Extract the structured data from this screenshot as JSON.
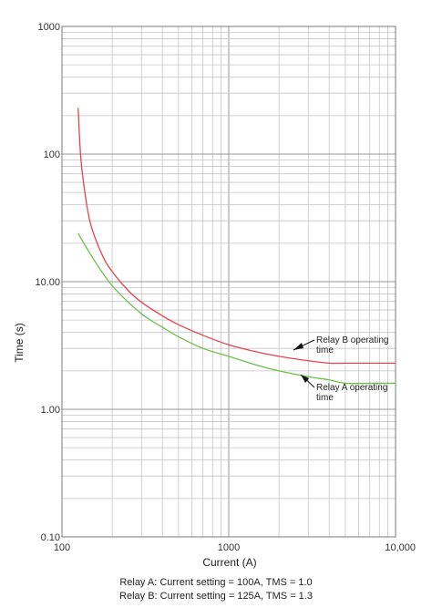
{
  "chart_data": {
    "type": "line",
    "x_scale": "log",
    "y_scale": "log",
    "xlim": [
      100,
      10000
    ],
    "ylim": [
      0.1,
      1000
    ],
    "xlabel": "Current (A)",
    "ylabel": "Time (s)",
    "x_ticks": [
      "100",
      "1000",
      "10,000"
    ],
    "y_ticks": [
      "0.10",
      "1.00",
      "10.00",
      "100",
      "1000"
    ],
    "grid": true,
    "series": [
      {
        "name": "Relay B operating time",
        "color": "#e8434f",
        "x": [
          125,
          130,
          140,
          150,
          175,
          200,
          250,
          300,
          400,
          500,
          700,
          1000,
          1500,
          2000,
          3000,
          4000,
          5000,
          7000,
          10000
        ],
        "y": [
          230,
          90,
          42,
          27,
          16,
          12,
          8.5,
          6.9,
          5.4,
          4.6,
          3.8,
          3.2,
          2.8,
          2.6,
          2.4,
          2.3,
          2.3,
          2.3,
          2.3
        ]
      },
      {
        "name": "Relay A operating time",
        "color": "#6cc04a",
        "x": [
          125,
          150,
          200,
          300,
          400,
          500,
          700,
          1000,
          1500,
          2000,
          3000,
          4000,
          5000,
          7000,
          10000
        ],
        "y": [
          24,
          16,
          9.3,
          5.6,
          4.4,
          3.7,
          3.0,
          2.6,
          2.2,
          2.0,
          1.8,
          1.7,
          1.6,
          1.6,
          1.6
        ]
      }
    ],
    "annotations": [
      {
        "series": 0,
        "line1": "Relay B operating",
        "line2": "time"
      },
      {
        "series": 1,
        "line1": "Relay A operating",
        "line2": "time"
      }
    ]
  },
  "caption": {
    "relay_a": "Relay A: Current setting = 100A, TMS = 1.0",
    "relay_b": "Relay B: Current setting = 125A, TMS = 1.3"
  }
}
